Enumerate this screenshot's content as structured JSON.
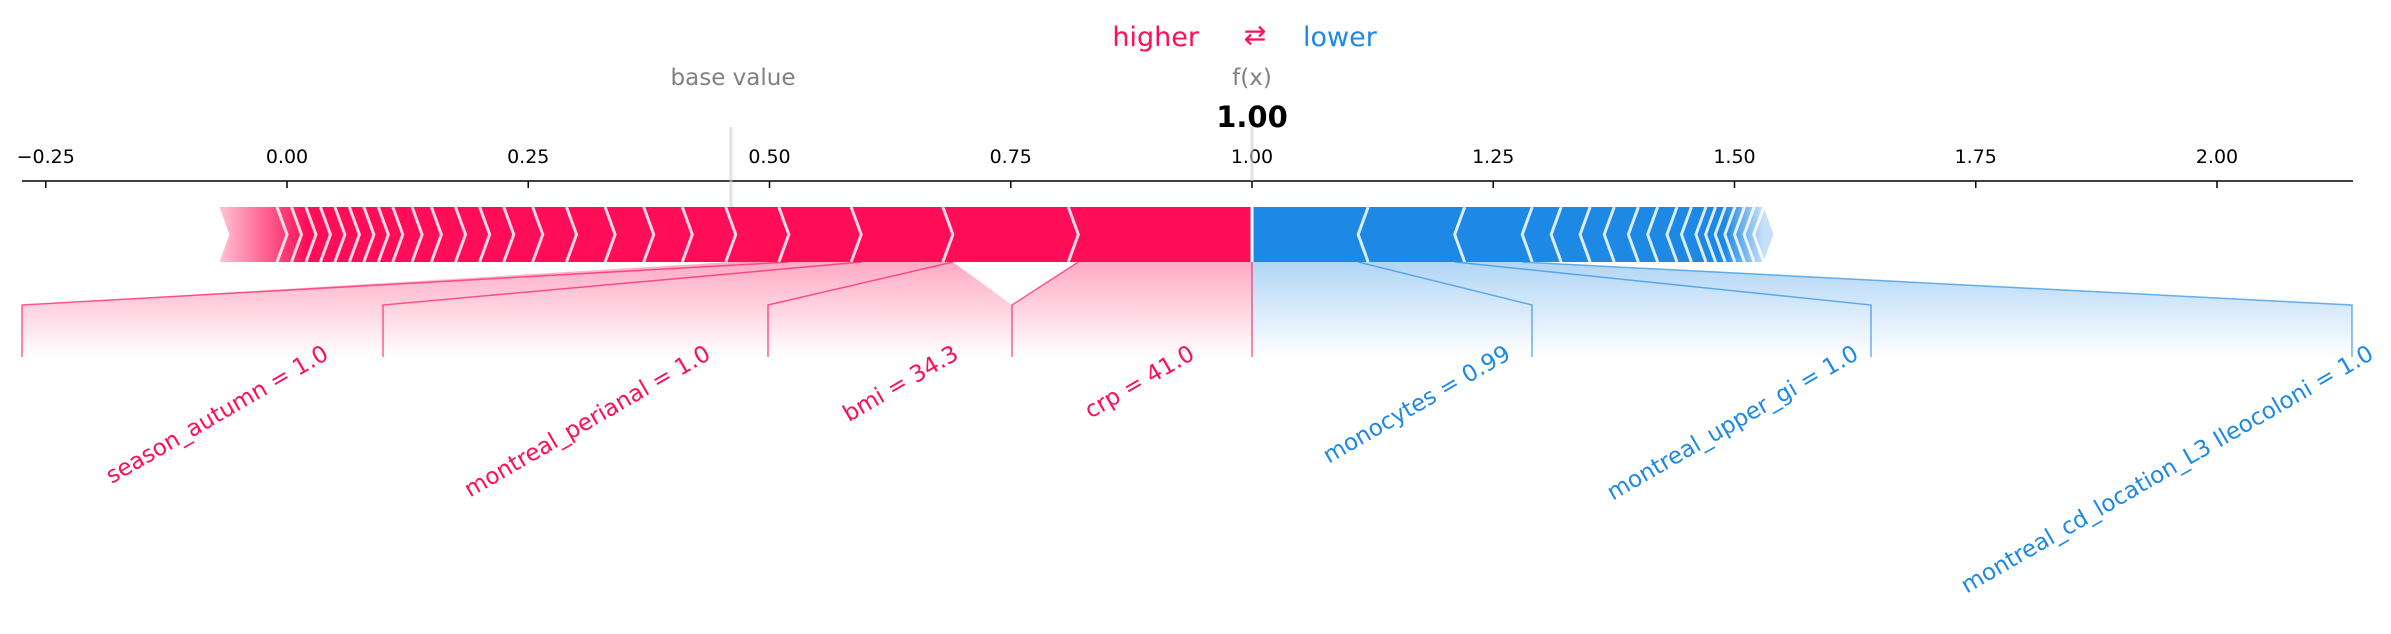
{
  "legend": {
    "higher_label": "higher",
    "arrow_symbol": "⇄",
    "lower_label": "lower",
    "higher_color": "#ff0d57",
    "lower_color": "#1e88e5"
  },
  "chart_data": {
    "type": "force-plot",
    "base_value_label": "base value",
    "output_label": "f(x)",
    "output_value_text": "1.00",
    "output_value": 1.0,
    "base_value": 0.46,
    "xlim": [
      -0.28,
      2.15
    ],
    "ticks": [
      {
        "value": -0.25,
        "label": "−0.25"
      },
      {
        "value": 0.0,
        "label": "0.00"
      },
      {
        "value": 0.25,
        "label": "0.25"
      },
      {
        "value": 0.5,
        "label": "0.50"
      },
      {
        "value": 0.75,
        "label": "0.75"
      },
      {
        "value": 1.0,
        "label": "1.00"
      },
      {
        "value": 1.25,
        "label": "1.25"
      },
      {
        "value": 1.5,
        "label": "1.50"
      },
      {
        "value": 1.75,
        "label": "1.75"
      },
      {
        "value": 2.0,
        "label": "2.00"
      }
    ],
    "positive_range": [
      -0.07,
      1.0
    ],
    "negative_range": [
      1.0,
      1.53
    ],
    "positive_boundaries": [
      0.0,
      0.015,
      0.03,
      0.045,
      0.06,
      0.075,
      0.09,
      0.105,
      0.12,
      0.14,
      0.16,
      0.185,
      0.21,
      0.235,
      0.265,
      0.3,
      0.34,
      0.38,
      0.42,
      0.465,
      0.52,
      0.595,
      0.69,
      0.82
    ],
    "negative_boundaries": [
      1.11,
      1.21,
      1.28,
      1.31,
      1.34,
      1.365,
      1.39,
      1.41,
      1.43,
      1.445,
      1.46,
      1.47,
      1.48,
      1.49,
      1.5,
      1.51,
      1.52
    ],
    "positive_features": [
      {
        "label": "season_autumn = 1.0",
        "from": 0.46,
        "to": 0.52
      },
      {
        "label": "montreal_perianal = 1.0",
        "from": 0.52,
        "to": 0.595
      },
      {
        "label": "bmi = 34.3",
        "from": 0.595,
        "to": 0.69
      },
      {
        "label": "crp = 41.0",
        "from": 0.82,
        "to": 1.0
      }
    ],
    "negative_features": [
      {
        "label": "monocytes = 0.99",
        "from": 1.0,
        "to": 1.11
      },
      {
        "label": "montreal_upper_gi = 1.0",
        "from": 1.11,
        "to": 1.21
      },
      {
        "label": "montreal_cd_location_L3 Ileocoloni = 1.0",
        "from": 1.21,
        "to": 1.28
      }
    ]
  }
}
